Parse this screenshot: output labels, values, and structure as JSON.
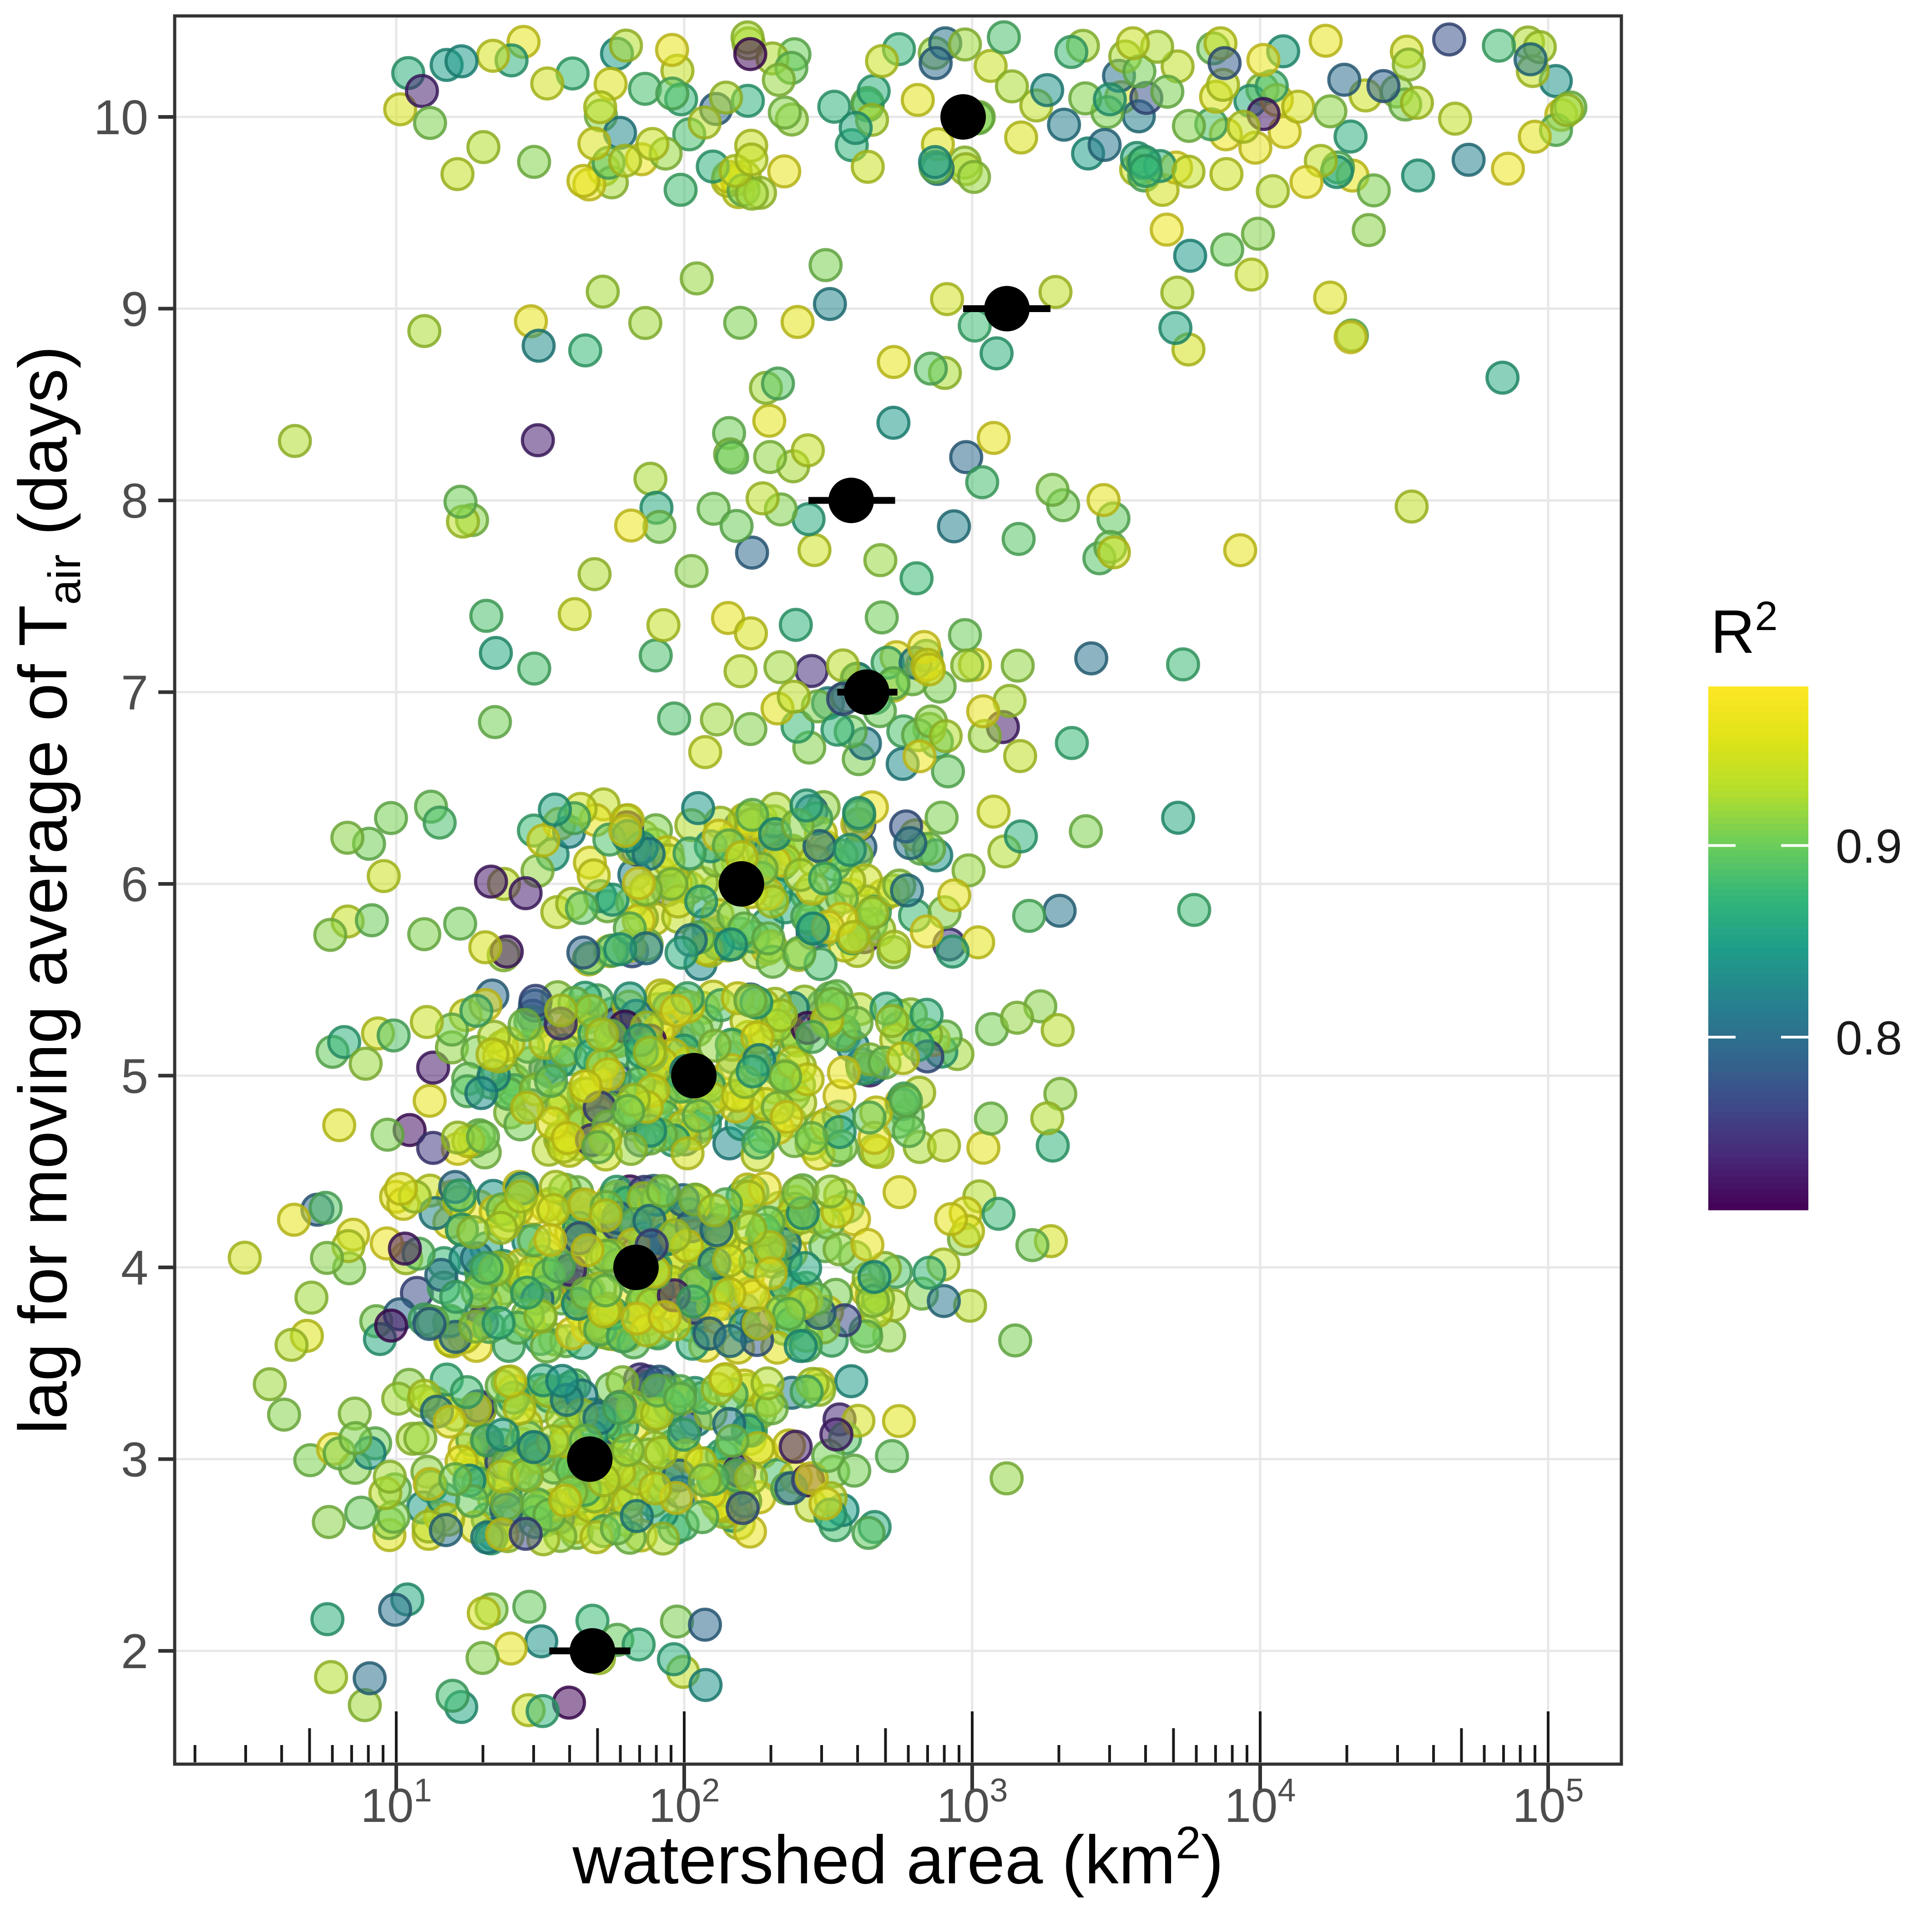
{
  "figure": {
    "kind": "jittered scatter plot with summary means",
    "background_color": "#ffffff"
  },
  "chart_data": {
    "type": "scatter",
    "title": "",
    "xlabel": "watershed area (km2)",
    "xlabel_parts": [
      {
        "text": "watershed area (km"
      },
      {
        "text": "2",
        "script": "sup"
      },
      {
        "text": ")"
      }
    ],
    "ylabel": "lag for moving average of Tair (days)",
    "ylabel_parts": [
      {
        "text": "lag for moving average of T"
      },
      {
        "text": "air",
        "script": "sub"
      },
      {
        "text": " (days)"
      }
    ],
    "x_scale": "log10",
    "x_tick_exponents": [
      1,
      2,
      3,
      4,
      5
    ],
    "x_domain_log10": [
      0.27,
      5.25
    ],
    "x_minor_tick_mantissas": [
      2,
      3,
      4,
      5,
      6,
      7,
      8,
      9
    ],
    "y_ticks": [
      2,
      3,
      4,
      5,
      6,
      7,
      8,
      9,
      10
    ],
    "y_domain": [
      1.41,
      10.53
    ],
    "grid": "major-only",
    "jitter_height": 0.42,
    "legend": {
      "title": "R2",
      "title_parts": [
        {
          "text": "R"
        },
        {
          "text": "2",
          "script": "sup"
        }
      ],
      "position": "right",
      "palette": "viridis",
      "value_domain": [
        0.71,
        0.983
      ],
      "tick_values": [
        0.9,
        0.8
      ],
      "tick_labels": [
        "0.9",
        "0.8"
      ]
    },
    "viridis_stops": [
      [
        0.0,
        "#440154"
      ],
      [
        0.1,
        "#482878"
      ],
      [
        0.2,
        "#3e4a89"
      ],
      [
        0.3,
        "#31688e"
      ],
      [
        0.4,
        "#26828e"
      ],
      [
        0.5,
        "#1f9e89"
      ],
      [
        0.6,
        "#35b779"
      ],
      [
        0.7,
        "#6dcd59"
      ],
      [
        0.8,
        "#b4de2c"
      ],
      [
        0.9,
        "#e0e318"
      ],
      [
        1.0,
        "#fde725"
      ]
    ],
    "mean_points": [
      {
        "lag": 2,
        "area_km2": 48,
        "ci_low_km2": 34,
        "ci_high_km2": 65
      },
      {
        "lag": 3,
        "area_km2": 47,
        "ci_low_km2": 42,
        "ci_high_km2": 52
      },
      {
        "lag": 4,
        "area_km2": 68,
        "ci_low_km2": 62,
        "ci_high_km2": 74
      },
      {
        "lag": 5,
        "area_km2": 108,
        "ci_low_km2": 98,
        "ci_high_km2": 119
      },
      {
        "lag": 6,
        "area_km2": 158,
        "ci_low_km2": 140,
        "ci_high_km2": 180
      },
      {
        "lag": 7,
        "area_km2": 430,
        "ci_low_km2": 340,
        "ci_high_km2": 550
      },
      {
        "lag": 8,
        "area_km2": 380,
        "ci_low_km2": 270,
        "ci_high_km2": 540
      },
      {
        "lag": 9,
        "area_km2": 1320,
        "ci_low_km2": 930,
        "ci_high_km2": 1870
      },
      {
        "lag": 10,
        "area_km2": 930,
        "ci_low_km2": 790,
        "ci_high_km2": 1100
      }
    ],
    "jitter_rows": [
      {
        "lag": 2,
        "n": 26,
        "components": [
          {
            "w": 1.0,
            "mu": 1.58,
            "sd": 0.48
          }
        ],
        "clamp_log10": [
          0.4,
          2.55
        ],
        "x_range_km2": [
          3,
          350
        ]
      },
      {
        "lag": 3,
        "n": 320,
        "components": [
          {
            "w": 1.0,
            "mu": 1.7,
            "sd": 0.5
          }
        ],
        "clamp_log10": [
          0.45,
          3.35
        ],
        "x_range_km2": [
          3,
          2200
        ]
      },
      {
        "lag": 4,
        "n": 400,
        "components": [
          {
            "w": 1.0,
            "mu": 1.85,
            "sd": 0.52
          }
        ],
        "clamp_log10": [
          0.45,
          3.6
        ],
        "x_range_km2": [
          3,
          4000
        ]
      },
      {
        "lag": 5,
        "n": 330,
        "components": [
          {
            "w": 1.0,
            "mu": 2.03,
            "sd": 0.5
          }
        ],
        "clamp_log10": [
          0.6,
          3.9
        ],
        "x_range_km2": [
          4,
          7900
        ]
      },
      {
        "lag": 6,
        "n": 225,
        "components": [
          {
            "w": 1.0,
            "mu": 2.18,
            "sd": 0.52
          }
        ],
        "clamp_log10": [
          0.75,
          3.95
        ],
        "x_range_km2": [
          6,
          8900
        ]
      },
      {
        "lag": 7,
        "n": 68,
        "components": [
          {
            "w": 0.6,
            "mu": 2.66,
            "sd": 0.22
          },
          {
            "w": 0.4,
            "mu": 2.4,
            "sd": 0.95
          }
        ],
        "clamp_log10": [
          0.7,
          4.85
        ],
        "x_range_km2": [
          5,
          70000
        ]
      },
      {
        "lag": 8,
        "n": 42,
        "components": [
          {
            "w": 1.0,
            "mu": 2.55,
            "sd": 0.85
          }
        ],
        "clamp_log10": [
          0.5,
          4.85
        ],
        "x_range_km2": [
          3,
          70000
        ]
      },
      {
        "lag": 9,
        "n": 33,
        "components": [
          {
            "w": 1.0,
            "mu": 3.0,
            "sd": 0.9
          }
        ],
        "clamp_log10": [
          0.8,
          5.05
        ],
        "x_range_km2": [
          6,
          112000
        ]
      },
      {
        "lag": 10,
        "n": 175,
        "components": [
          {
            "w": 0.35,
            "mu": 1.9,
            "sd": 0.5
          },
          {
            "w": 0.65,
            "mu": 3.8,
            "sd": 0.8
          }
        ],
        "clamp_log10": [
          1.0,
          5.15
        ],
        "x_range_km2": [
          10,
          141000
        ]
      }
    ],
    "r2_mixture": [
      {
        "p": 0.58,
        "lo": 0.9,
        "hi": 0.97
      },
      {
        "p": 0.84,
        "lo": 0.855,
        "hi": 0.91
      },
      {
        "p": 0.95,
        "lo": 0.79,
        "hi": 0.865
      },
      {
        "p": 1.0,
        "lo": 0.715,
        "hi": 0.79
      }
    ],
    "seed": 1234567
  },
  "style_colors": {
    "gridline": "#e7e7e7",
    "panel_border": "#333333",
    "axis_tick": "#333333",
    "inner_logtick": "#1a1a1a",
    "tick_label": "#4d4d4d",
    "axis_title": "#000000",
    "legend_label": "#1a1a1a",
    "mean_marker": "#000000"
  }
}
